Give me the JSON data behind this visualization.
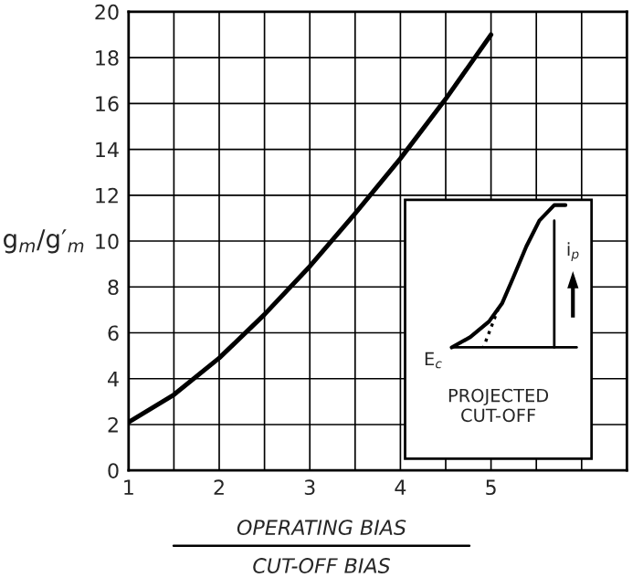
{
  "chart_data": {
    "type": "line",
    "xlabel": "OPERATING BIAS\nCUT-OFF BIAS",
    "ylabel": "g$_{m}$/g′$_{m}$",
    "x": [
      1,
      1.5,
      2,
      2.5,
      3,
      3.5,
      4,
      4.5,
      5
    ],
    "series": [
      {
        "color": "#000000",
        "values": [
          2.1,
          3.3,
          4.9,
          6.8,
          8.9,
          11.2,
          13.6,
          16.2,
          19
        ]
      }
    ],
    "xlim": [
      1,
      6.5
    ],
    "xticks": [
      1,
      {
        "value": 1.5,
        "label": null
      },
      2,
      {
        "value": 2.5,
        "label": null
      },
      3,
      {
        "value": 3.5,
        "label": null
      },
      4,
      {
        "value": 4.5,
        "label": null
      },
      5,
      {
        "value": 5.5,
        "label": null
      },
      {
        "value": 6,
        "label": null
      }
    ],
    "ylim": [
      0,
      20
    ],
    "yticks": [
      0,
      2,
      4,
      6,
      8,
      10,
      12,
      14,
      16,
      18,
      20
    ],
    "grid": true,
    "marker": "none",
    "line_style": "solid",
    "annotations": [
      "E$_{c}$",
      "PROJECTED\nCUT-OFF",
      "i$_{p}$"
    ]
  }
}
